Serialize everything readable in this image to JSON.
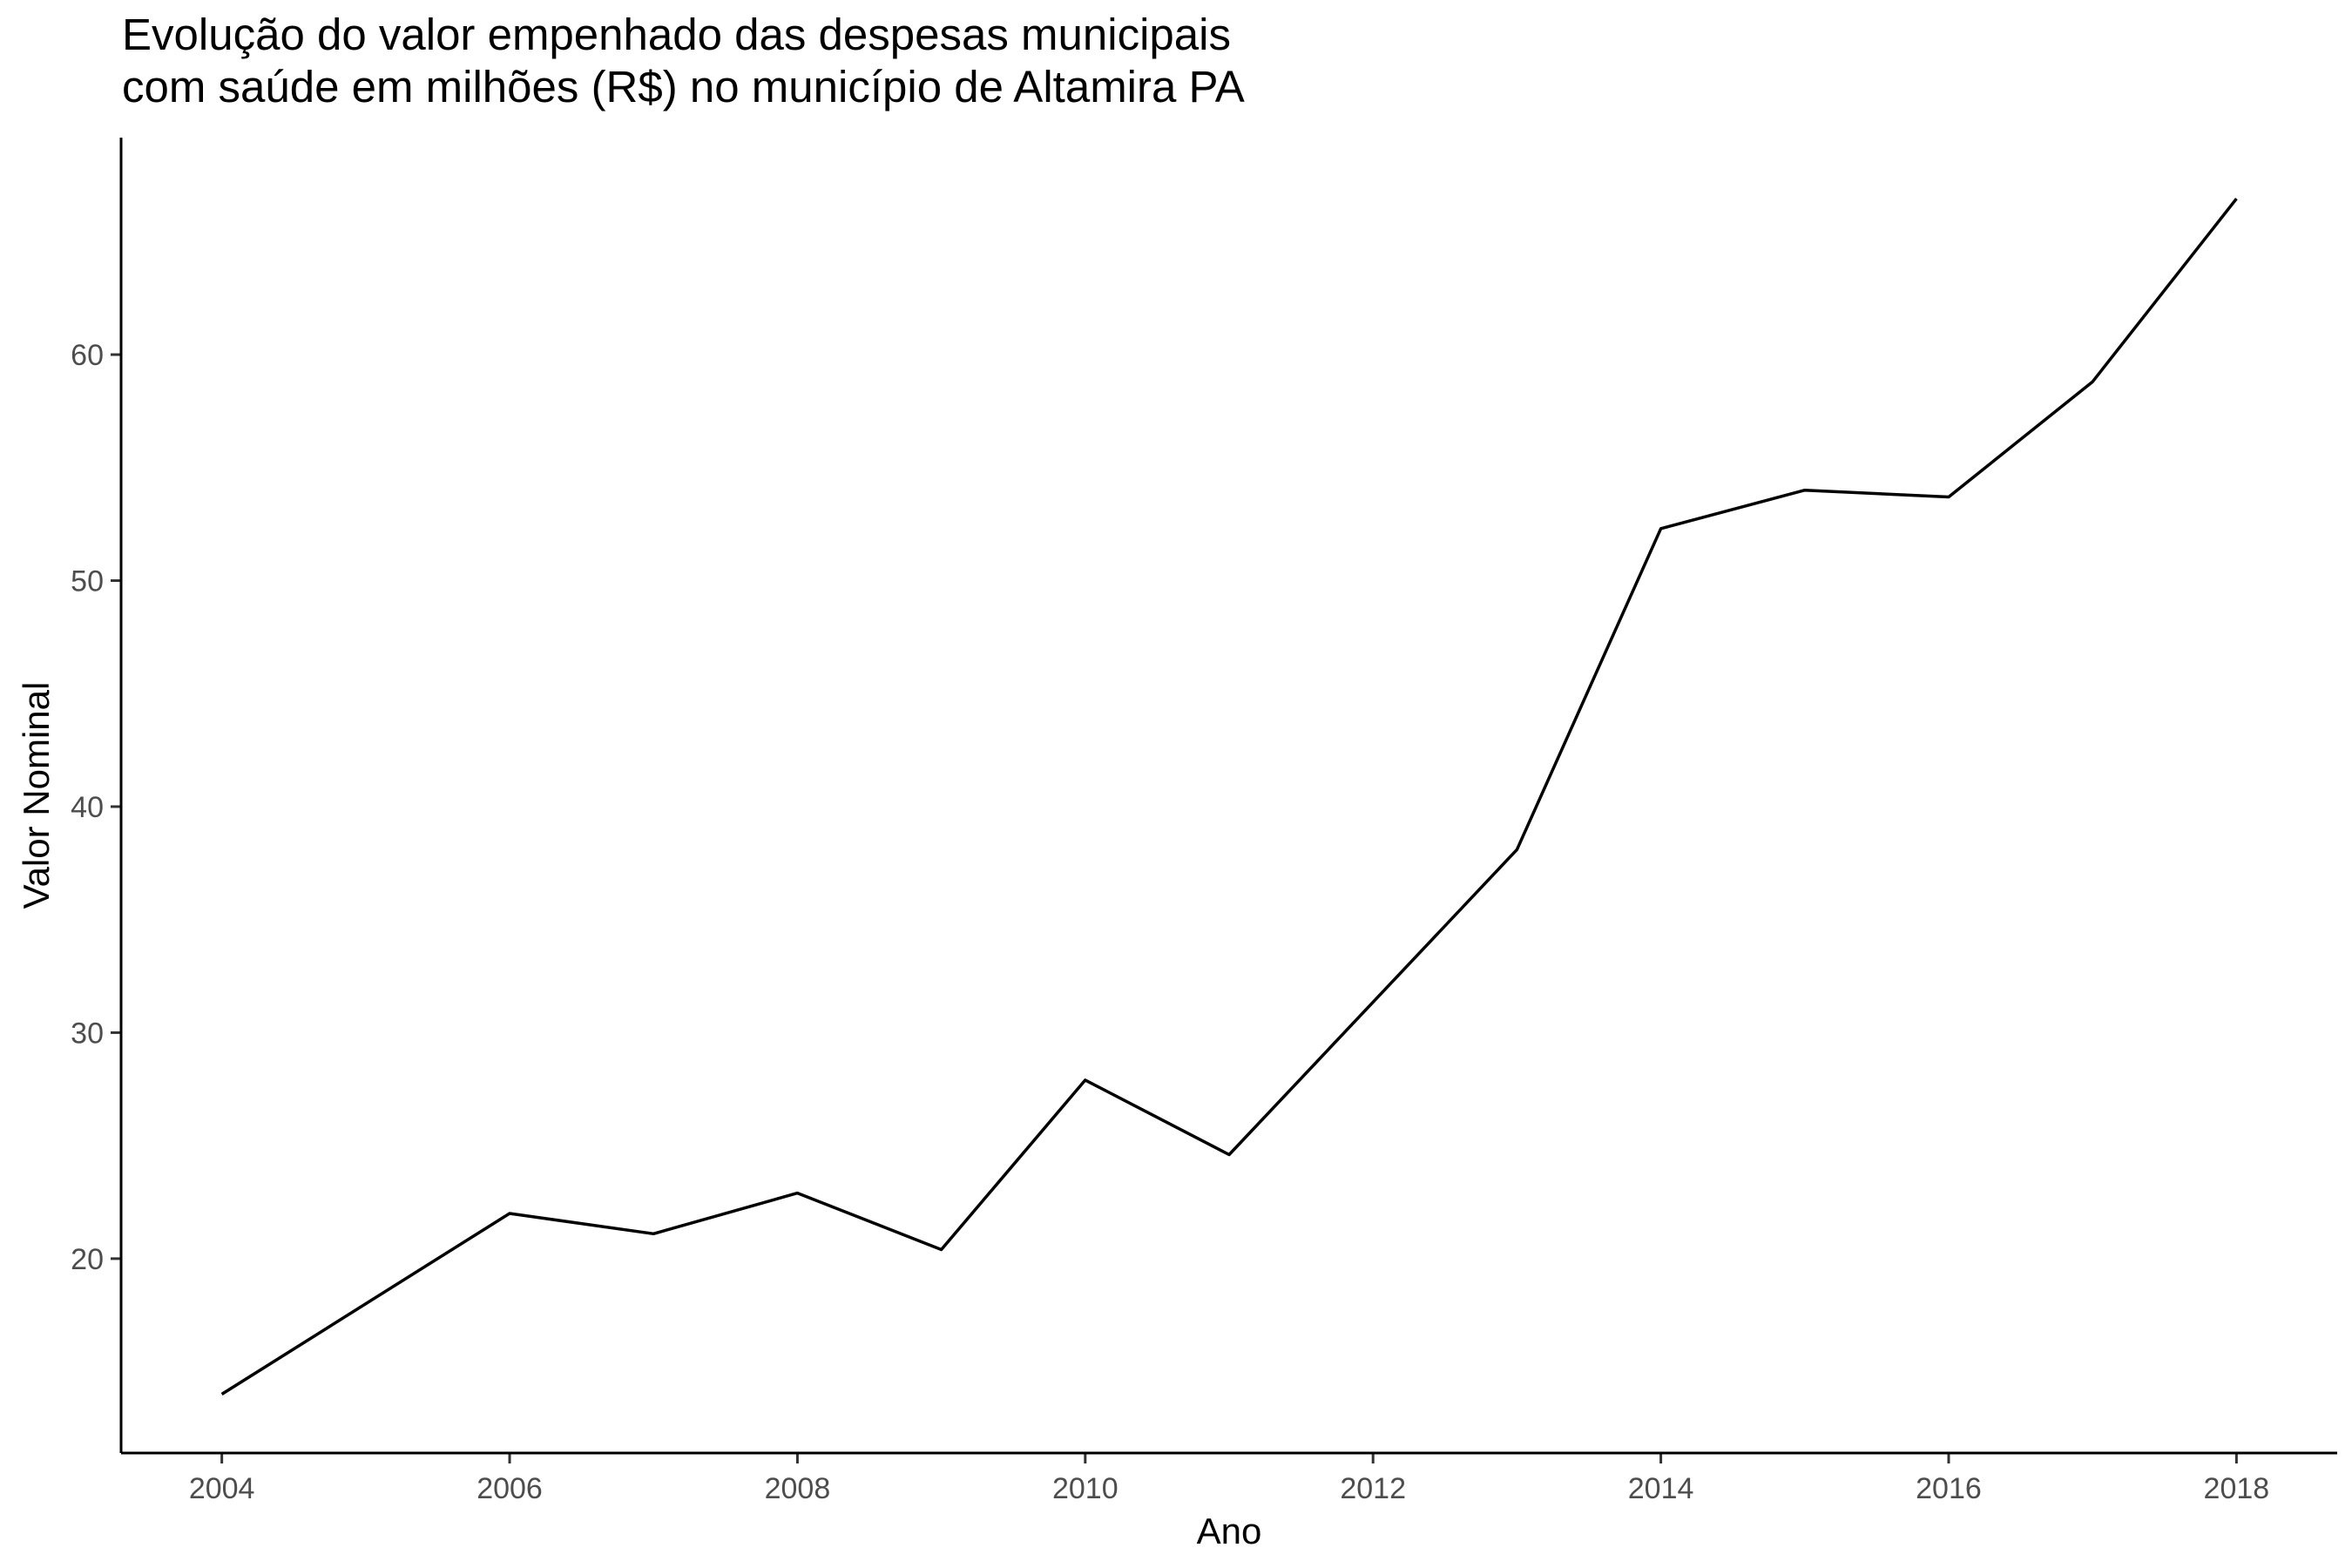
{
  "chart_data": {
    "type": "line",
    "title_lines": [
      "Evolução do valor empenhado das despesas municipais",
      "com saúde em milhões (R$) no município de Altamira PA"
    ],
    "xlabel": "Ano",
    "ylabel": "Valor Nominal",
    "xlim": [
      2003.3,
      2018.7
    ],
    "ylim": [
      11.4,
      69.6
    ],
    "x_ticks": [
      2004,
      2006,
      2008,
      2010,
      2012,
      2014,
      2016,
      2018
    ],
    "y_ticks": [
      20,
      30,
      40,
      50,
      60
    ],
    "grid": false,
    "legend": "none",
    "line_color": "#000000",
    "series": [
      {
        "x": [
          2004,
          2006,
          2007,
          2008,
          2009,
          2010,
          2011,
          2013,
          2014,
          2015,
          2016,
          2017,
          2018
        ],
        "values": [
          14.0,
          22.0,
          21.1,
          22.9,
          20.4,
          27.9,
          24.6,
          38.1,
          52.3,
          54.0,
          53.7,
          58.8,
          66.9
        ]
      }
    ]
  }
}
